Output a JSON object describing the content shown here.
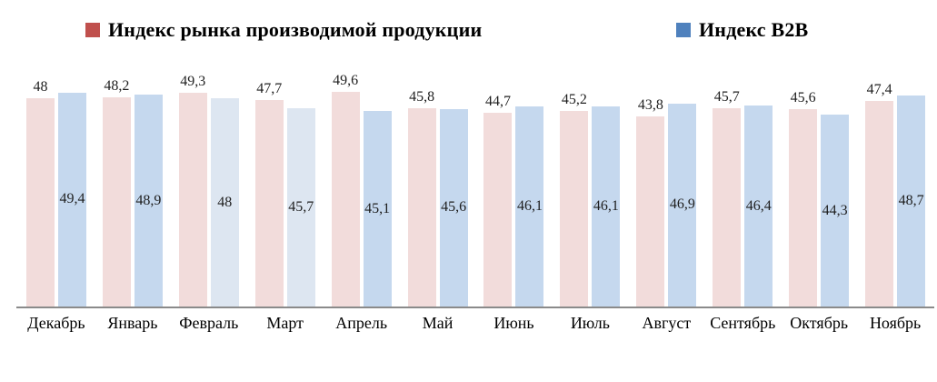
{
  "legend": [
    {
      "label": "Индекс рынка производимой продукции",
      "color": "#c0504d"
    },
    {
      "label": "Индекс B2B",
      "color": "#4f81bd"
    }
  ],
  "chart_data": {
    "type": "bar",
    "title": "",
    "xlabel": "",
    "ylabel": "",
    "ylim": [
      0,
      55
    ],
    "grid": false,
    "legend_position": "top",
    "axis_line_color": "#8a8a8a",
    "categories": [
      "Декабрь",
      "Январь",
      "Февраль",
      "Март",
      "Апрель",
      "Май",
      "Июнь",
      "Июль",
      "Август",
      "Сентябрь",
      "Октябрь",
      "Ноябрь"
    ],
    "series": [
      {
        "name": "Индекс рынка производимой продукции",
        "values": [
          48,
          48.2,
          49.3,
          47.7,
          49.6,
          45.8,
          44.7,
          45.2,
          43.8,
          45.7,
          45.6,
          47.4
        ],
        "labels": [
          "48",
          "48,2",
          "49,3",
          "47,7",
          "49,6",
          "45,8",
          "44,7",
          "45,2",
          "43,8",
          "45,7",
          "45,6",
          "47,4"
        ],
        "bar_color": "#f2dcdb",
        "label_position": "above"
      },
      {
        "name": "Индекс B2B",
        "values": [
          49.4,
          48.9,
          48,
          45.7,
          45.1,
          45.6,
          46.1,
          46.1,
          46.9,
          46.4,
          44.3,
          48.7
        ],
        "labels": [
          "49,4",
          "48,9",
          "48",
          "45,7",
          "45,1",
          "45,6",
          "46,1",
          "46,1",
          "46,9",
          "46,4",
          "44,3",
          "48,7"
        ],
        "bar_color": "#c5d8ee",
        "light_bar_color": "#dde6f1",
        "light_indices": [
          2,
          3
        ],
        "label_position": "inside-center"
      }
    ]
  }
}
